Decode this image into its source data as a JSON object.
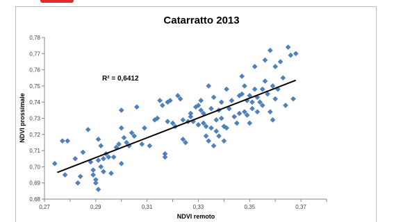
{
  "colors": {
    "marker": "#4f81bd",
    "trendline": "#000000",
    "accent": "#e32b2b"
  },
  "chart_data": {
    "type": "scatter",
    "title": "Catarratto 2013",
    "xlabel": "NDVI remoto",
    "ylabel": "NDVI prossimale",
    "xlim": [
      0.27,
      0.38
    ],
    "ylim": [
      0.68,
      0.78
    ],
    "x_ticks": [
      "0,27",
      "0,29",
      "0,31",
      "0,33",
      "0,35",
      "0,37"
    ],
    "y_ticks": [
      "0,68",
      "0,69",
      "0,70",
      "0,71",
      "0,72",
      "0,73",
      "0,74",
      "0,75",
      "0,76",
      "0,77",
      "0,78"
    ],
    "grid": false,
    "legend": "none",
    "trendline": {
      "type": "linear",
      "x": [
        0.275,
        0.368
      ],
      "y": [
        0.6965,
        0.7535
      ]
    },
    "annotation": "R² = 0,6412",
    "points": [
      [
        0.274,
        0.702
      ],
      [
        0.277,
        0.716
      ],
      [
        0.278,
        0.695
      ],
      [
        0.279,
        0.716
      ],
      [
        0.282,
        0.705
      ],
      [
        0.283,
        0.69
      ],
      [
        0.284,
        0.694
      ],
      [
        0.285,
        0.709
      ],
      [
        0.287,
        0.723
      ],
      [
        0.288,
        0.703
      ],
      [
        0.289,
        0.698
      ],
      [
        0.289,
        0.695
      ],
      [
        0.29,
        0.692
      ],
      [
        0.29,
        0.69
      ],
      [
        0.291,
        0.717
      ],
      [
        0.291,
        0.704
      ],
      [
        0.291,
        0.686
      ],
      [
        0.292,
        0.713
      ],
      [
        0.292,
        0.7
      ],
      [
        0.293,
        0.705
      ],
      [
        0.293,
        0.697
      ],
      [
        0.294,
        0.708
      ],
      [
        0.295,
        0.706
      ],
      [
        0.296,
        0.696
      ],
      [
        0.297,
        0.706
      ],
      [
        0.298,
        0.712
      ],
      [
        0.299,
        0.714
      ],
      [
        0.3,
        0.735
      ],
      [
        0.3,
        0.724
      ],
      [
        0.3,
        0.702
      ],
      [
        0.301,
        0.718
      ],
      [
        0.302,
        0.715
      ],
      [
        0.303,
        0.713
      ],
      [
        0.304,
        0.721
      ],
      [
        0.305,
        0.719
      ],
      [
        0.306,
        0.737
      ],
      [
        0.308,
        0.714
      ],
      [
        0.309,
        0.724
      ],
      [
        0.311,
        0.713
      ],
      [
        0.313,
        0.729
      ],
      [
        0.314,
        0.73
      ],
      [
        0.315,
        0.741
      ],
      [
        0.316,
        0.738
      ],
      [
        0.317,
        0.708
      ],
      [
        0.317,
        0.706
      ],
      [
        0.318,
        0.74
      ],
      [
        0.318,
        0.728
      ],
      [
        0.319,
        0.741
      ],
      [
        0.32,
        0.727
      ],
      [
        0.321,
        0.725
      ],
      [
        0.322,
        0.744
      ],
      [
        0.323,
        0.742
      ],
      [
        0.324,
        0.729
      ],
      [
        0.324,
        0.717
      ],
      [
        0.325,
        0.715
      ],
      [
        0.326,
        0.728
      ],
      [
        0.327,
        0.733
      ],
      [
        0.327,
        0.731
      ],
      [
        0.328,
        0.728
      ],
      [
        0.329,
        0.737
      ],
      [
        0.33,
        0.738
      ],
      [
        0.33,
        0.726
      ],
      [
        0.331,
        0.741
      ],
      [
        0.331,
        0.735
      ],
      [
        0.332,
        0.733
      ],
      [
        0.332,
        0.727
      ],
      [
        0.333,
        0.725
      ],
      [
        0.333,
        0.719
      ],
      [
        0.334,
        0.716
      ],
      [
        0.334,
        0.75
      ],
      [
        0.335,
        0.736
      ],
      [
        0.335,
        0.724
      ],
      [
        0.336,
        0.713
      ],
      [
        0.336,
        0.743
      ],
      [
        0.337,
        0.729
      ],
      [
        0.337,
        0.722
      ],
      [
        0.338,
        0.735
      ],
      [
        0.338,
        0.719
      ],
      [
        0.339,
        0.74
      ],
      [
        0.339,
        0.73
      ],
      [
        0.34,
        0.716
      ],
      [
        0.34,
        0.725
      ],
      [
        0.341,
        0.724
      ],
      [
        0.341,
        0.748
      ],
      [
        0.342,
        0.736
      ],
      [
        0.343,
        0.741
      ],
      [
        0.344,
        0.731
      ],
      [
        0.345,
        0.727
      ],
      [
        0.346,
        0.744
      ],
      [
        0.346,
        0.733
      ],
      [
        0.347,
        0.756
      ],
      [
        0.347,
        0.745
      ],
      [
        0.348,
        0.75
      ],
      [
        0.348,
        0.734
      ],
      [
        0.349,
        0.741
      ],
      [
        0.349,
        0.732
      ],
      [
        0.35,
        0.744
      ],
      [
        0.35,
        0.727
      ],
      [
        0.351,
        0.74
      ],
      [
        0.351,
        0.736
      ],
      [
        0.352,
        0.762
      ],
      [
        0.352,
        0.748
      ],
      [
        0.353,
        0.743
      ],
      [
        0.353,
        0.734
      ],
      [
        0.354,
        0.74
      ],
      [
        0.355,
        0.748
      ],
      [
        0.355,
        0.738
      ],
      [
        0.356,
        0.766
      ],
      [
        0.356,
        0.753
      ],
      [
        0.357,
        0.745
      ],
      [
        0.358,
        0.734
      ],
      [
        0.358,
        0.772
      ],
      [
        0.359,
        0.75
      ],
      [
        0.359,
        0.729
      ],
      [
        0.36,
        0.762
      ],
      [
        0.36,
        0.742
      ],
      [
        0.361,
        0.748
      ],
      [
        0.362,
        0.765
      ],
      [
        0.363,
        0.755
      ],
      [
        0.364,
        0.738
      ],
      [
        0.365,
        0.774
      ],
      [
        0.366,
        0.769
      ],
      [
        0.367,
        0.742
      ],
      [
        0.368,
        0.77
      ]
    ]
  }
}
